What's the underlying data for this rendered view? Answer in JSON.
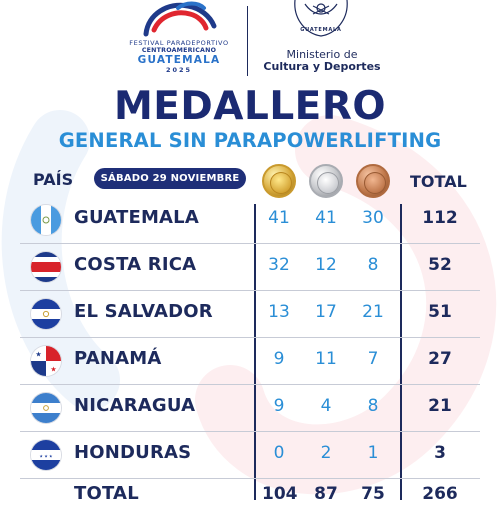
{
  "header": {
    "festival": {
      "line1": "FESTIVAL PARADEPORTIVO",
      "line2": "CENTROAMERICANO",
      "line3": "GUATEMALA",
      "line4": "2025"
    },
    "seal": {
      "label": "GUATEMALA"
    },
    "ministry": {
      "line1": "Ministerio de",
      "line2": "Cultura y Deportes"
    }
  },
  "title": "MEDALLERO",
  "subtitle": "GENERAL SIN PARAPOWERLIFTING",
  "columns": {
    "country": "PAÍS",
    "date": "SÁBADO 29 NOVIEMBRE",
    "gold_icon": "gold-medal-icon",
    "silver_icon": "silver-medal-icon",
    "bronze_icon": "bronze-medal-icon",
    "total": "TOTAL"
  },
  "rows": [
    {
      "flag": "guatemala-flag-icon",
      "country": "GUATEMALA",
      "gold": "41",
      "silver": "41",
      "bronze": "30",
      "total": "112"
    },
    {
      "flag": "costa-rica-flag-icon",
      "country": "COSTA RICA",
      "gold": "32",
      "silver": "12",
      "bronze": "8",
      "total": "52"
    },
    {
      "flag": "el-salvador-flag-icon",
      "country": "EL SALVADOR",
      "gold": "13",
      "silver": "17",
      "bronze": "21",
      "total": "51"
    },
    {
      "flag": "panama-flag-icon",
      "country": "PANAMÁ",
      "gold": "9",
      "silver": "11",
      "bronze": "7",
      "total": "27"
    },
    {
      "flag": "nicaragua-flag-icon",
      "country": "NICARAGUA",
      "gold": "9",
      "silver": "4",
      "bronze": "8",
      "total": "21"
    },
    {
      "flag": "honduras-flag-icon",
      "country": "HONDURAS",
      "gold": "0",
      "silver": "2",
      "bronze": "1",
      "total": "3"
    }
  ],
  "totals": {
    "label": "TOTAL",
    "gold": "104",
    "silver": "87",
    "bronze": "75",
    "total": "266"
  },
  "colors": {
    "navy": "#1d2a5c",
    "title_navy": "#1b2a72",
    "accent_blue": "#2a8ed6",
    "pill": "#1f2f78"
  }
}
